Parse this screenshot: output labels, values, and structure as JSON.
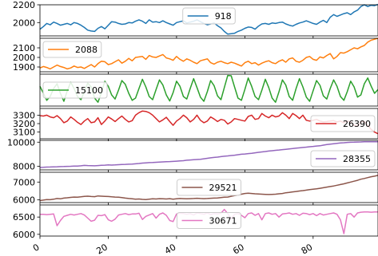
{
  "chart_data": [
    {
      "type": "line",
      "series": [
        {
          "name": "918",
          "color": "#1f77b4",
          "y": [
            1925,
            1955,
            1990,
            1975,
            2005,
            1990,
            1970,
            1980,
            1990,
            1975,
            2000,
            1990,
            1970,
            1945,
            1915,
            1905,
            1900,
            1935,
            1955,
            1930,
            1970,
            2010,
            2005,
            1990,
            1980,
            1985,
            2000,
            1995,
            2015,
            2030,
            2015,
            1990,
            2030,
            2005,
            2010,
            2000,
            2020,
            2000,
            1985,
            1970,
            2000,
            2010,
            2020,
            1995,
            2005,
            2015,
            2030,
            2010,
            1990,
            1975,
            1985,
            1995,
            1965,
            1940,
            1900,
            1870,
            1875,
            1880,
            1900,
            1915,
            1935,
            1950,
            1945,
            1925,
            1960,
            1985,
            1990,
            1980,
            1995,
            1990,
            2000,
            2005,
            1985,
            1970,
            1960,
            1980,
            1995,
            2005,
            2020,
            2005,
            1990,
            1980,
            2005,
            2025,
            2000,
            2060,
            2090,
            2070,
            2085,
            2100,
            2110,
            2090,
            2120,
            2140,
            2180,
            2200,
            2180,
            2195,
            2190,
            2205
          ]
        }
      ],
      "ylim": [
        1850,
        2200
      ],
      "yticks": [
        "2200",
        "2000"
      ],
      "ytick_values": [
        2200,
        2000
      ],
      "legend": "upper center"
    },
    {
      "type": "line",
      "series": [
        {
          "name": "2088",
          "color": "#ff7f0e",
          "y": [
            1890,
            1905,
            1895,
            1880,
            1900,
            1920,
            1905,
            1895,
            1880,
            1890,
            1910,
            1895,
            1900,
            1885,
            1905,
            1925,
            1900,
            1935,
            1960,
            1955,
            1925,
            1935,
            1955,
            1975,
            1940,
            1960,
            1990,
            1965,
            2000,
            2005,
            2010,
            1980,
            2020,
            2005,
            2000,
            2015,
            2030,
            1995,
            1985,
            1970,
            2010,
            1980,
            1960,
            1985,
            1970,
            1950,
            1935,
            1965,
            1975,
            1985,
            1945,
            1930,
            1950,
            1960,
            1945,
            1935,
            1950,
            1940,
            1925,
            1910,
            1945,
            1960,
            1935,
            1945,
            1920,
            1940,
            1955,
            1965,
            1945,
            1935,
            1960,
            1975,
            1950,
            1985,
            1995,
            1960,
            1950,
            1970,
            2000,
            2010,
            1980,
            1970,
            2005,
            1995,
            2020,
            2040,
            1985,
            2010,
            2050,
            2045,
            2060,
            2080,
            2100,
            2090,
            2110,
            2125,
            2160,
            2180,
            2190,
            2200
          ]
        }
      ],
      "ylim": [
        1850,
        2200
      ],
      "yticks": [
        "2100",
        "2000",
        "1900"
      ],
      "ytick_values": [
        2100,
        2000,
        1900
      ],
      "legend": "upper left"
    },
    {
      "type": "line",
      "series": [
        {
          "name": "15100",
          "color": "#2ca02c",
          "y": [
            0.62,
            0.4,
            0.18,
            0.3,
            0.55,
            0.7,
            0.4,
            0.15,
            0.48,
            0.75,
            0.55,
            0.3,
            0.2,
            0.45,
            0.72,
            0.6,
            0.25,
            0.12,
            0.42,
            0.78,
            0.62,
            0.35,
            0.22,
            0.5,
            0.8,
            0.68,
            0.4,
            0.18,
            0.25,
            0.55,
            0.84,
            0.6,
            0.3,
            0.2,
            0.52,
            0.82,
            0.66,
            0.35,
            0.16,
            0.42,
            0.78,
            0.62,
            0.3,
            0.22,
            0.55,
            0.86,
            0.58,
            0.28,
            0.15,
            0.45,
            0.8,
            0.64,
            0.32,
            0.2,
            0.58,
            0.96,
            0.95,
            0.6,
            0.25,
            0.18,
            0.52,
            0.88,
            0.62,
            0.3,
            0.2,
            0.5,
            0.84,
            0.58,
            0.25,
            0.12,
            0.45,
            0.82,
            0.66,
            0.3,
            0.18,
            0.55,
            0.86,
            0.6,
            0.28,
            0.15,
            0.48,
            0.8,
            0.65,
            0.32,
            0.22,
            0.55,
            0.82,
            0.62,
            0.3,
            0.18,
            0.45,
            0.78,
            0.6,
            0.28,
            0.35,
            0.7,
            0.88,
            0.62,
            0.4,
            0.52
          ]
        }
      ],
      "ylim": [
        0,
        1
      ],
      "yticks": [],
      "ytick_values": [],
      "legend": "center left"
    },
    {
      "type": "line",
      "series": [
        {
          "name": "26390",
          "color": "#d62728",
          "y": [
            3295,
            3290,
            3300,
            3280,
            3270,
            3295,
            3260,
            3210,
            3230,
            3280,
            3250,
            3215,
            3190,
            3230,
            3260,
            3210,
            3220,
            3270,
            3190,
            3230,
            3280,
            3255,
            3225,
            3260,
            3290,
            3250,
            3220,
            3235,
            3300,
            3330,
            3350,
            3345,
            3330,
            3300,
            3260,
            3220,
            3245,
            3275,
            3225,
            3180,
            3230,
            3260,
            3300,
            3270,
            3220,
            3250,
            3300,
            3240,
            3210,
            3230,
            3280,
            3255,
            3225,
            3250,
            3240,
            3195,
            3220,
            3260,
            3250,
            3240,
            3230,
            3285,
            3300,
            3250,
            3260,
            3320,
            3290,
            3270,
            3300,
            3280,
            3290,
            3330,
            3300,
            3260,
            3320,
            3295,
            3260,
            3300,
            3240,
            3230,
            3240,
            3250,
            3230,
            3220,
            3225,
            3230,
            3235,
            3220,
            3230,
            3210,
            3230,
            3220,
            3180,
            3170,
            3215,
            3225,
            3180,
            3130,
            3100,
            3080
          ]
        }
      ],
      "ylim": [
        3020,
        3380
      ],
      "yticks": [
        "3300",
        "3200",
        "3100"
      ],
      "ytick_values": [
        3300,
        3200,
        3100
      ],
      "legend": "center right"
    },
    {
      "type": "line",
      "series": [
        {
          "name": "28355",
          "color": "#9467bd",
          "y": [
            7900,
            7910,
            7930,
            7940,
            7950,
            7960,
            7970,
            7980,
            7990,
            8000,
            8010,
            8020,
            8040,
            8070,
            8060,
            8050,
            8040,
            8060,
            8080,
            8090,
            8110,
            8100,
            8110,
            8130,
            8150,
            8160,
            8170,
            8180,
            8200,
            8230,
            8260,
            8280,
            8300,
            8310,
            8330,
            8340,
            8360,
            8380,
            8390,
            8400,
            8420,
            8440,
            8460,
            8500,
            8520,
            8540,
            8560,
            8580,
            8620,
            8660,
            8700,
            8730,
            8760,
            8800,
            8830,
            8860,
            8890,
            8920,
            8960,
            9000,
            9020,
            9050,
            9080,
            9120,
            9160,
            9190,
            9220,
            9260,
            9290,
            9320,
            9350,
            9380,
            9410,
            9440,
            9470,
            9500,
            9530,
            9560,
            9590,
            9620,
            9650,
            9680,
            9700,
            9750,
            9800,
            9840,
            9870,
            9900,
            9930,
            9950,
            9980,
            9990,
            10000,
            10010,
            10020,
            10030,
            10040,
            10040,
            10040,
            10040
          ]
        }
      ],
      "ylim": [
        7700,
        10150
      ],
      "yticks": [
        "10000",
        "8000"
      ],
      "ytick_values": [
        10000,
        8000
      ],
      "legend": "lower right"
    },
    {
      "type": "line",
      "series": [
        {
          "name": "29521",
          "color": "#8c564b",
          "y": [
            5960,
            5990,
            6020,
            6010,
            6040,
            6080,
            6060,
            6100,
            6120,
            6140,
            6160,
            6150,
            6170,
            6200,
            6210,
            6190,
            6180,
            6220,
            6210,
            6200,
            6190,
            6170,
            6160,
            6150,
            6130,
            6100,
            6080,
            6060,
            6040,
            6050,
            6030,
            6020,
            6040,
            6060,
            6050,
            6070,
            6060,
            6050,
            6070,
            6040,
            6060,
            6080,
            6070,
            6060,
            6070,
            6080,
            6090,
            6080,
            6070,
            6080,
            6090,
            6100,
            6110,
            6130,
            6150,
            6160,
            6200,
            6240,
            6270,
            6320,
            6360,
            6380,
            6360,
            6340,
            6330,
            6320,
            6310,
            6300,
            6310,
            6320,
            6340,
            6360,
            6400,
            6420,
            6450,
            6470,
            6500,
            6520,
            6550,
            6580,
            6600,
            6620,
            6650,
            6680,
            6720,
            6750,
            6780,
            6820,
            6860,
            6900,
            6950,
            7000,
            7050,
            7100,
            7160,
            7200,
            7250,
            7300,
            7330,
            7380
          ]
        }
      ],
      "ylim": [
        5850,
        7550
      ],
      "yticks": [
        "7000",
        "6000"
      ],
      "ytick_values": [
        7000,
        6000
      ],
      "legend": "center"
    },
    {
      "type": "line",
      "series": [
        {
          "name": "30671",
          "color": "#e377c2",
          "y": [
            6580,
            6580,
            6570,
            6580,
            6590,
            6250,
            6400,
            6520,
            6550,
            6580,
            6560,
            6580,
            6600,
            6560,
            6470,
            6380,
            6410,
            6550,
            6540,
            6570,
            6420,
            6380,
            6440,
            6560,
            6580,
            6600,
            6570,
            6590,
            6590,
            6610,
            6430,
            6520,
            6560,
            6600,
            6470,
            6580,
            6620,
            6550,
            6400,
            6370,
            6590,
            6610,
            6600,
            6580,
            6600,
            6560,
            6620,
            6600,
            6580,
            6620,
            6570,
            6600,
            6590,
            6610,
            6720,
            6600,
            6450,
            6580,
            6600,
            6550,
            6480,
            6600,
            6620,
            6550,
            6600,
            6420,
            6600,
            6620,
            6580,
            6600,
            6500,
            6590,
            6600,
            6620,
            6580,
            6600,
            6550,
            6610,
            6600,
            6570,
            6600,
            6540,
            6600,
            6560,
            6580,
            6600,
            6620,
            6580,
            6420,
            6020,
            6580,
            6600,
            6500,
            6620,
            6640,
            6650,
            6650,
            6640,
            6650,
            6650
          ]
        }
      ],
      "ylim": [
        5950,
        6850
      ],
      "yticks": [
        "6500",
        "6000"
      ],
      "ytick_values": [
        6500,
        6000
      ],
      "legend": "center"
    }
  ],
  "x_axis": {
    "xlim": [
      0,
      99
    ],
    "ticks": [
      "0",
      "20",
      "40",
      "60",
      "80"
    ],
    "tick_values": [
      0,
      20,
      40,
      60,
      80
    ]
  },
  "colors": {
    "axes_edge": "#000000",
    "grid": "#e6e6e6",
    "legend_edge": "#cccccc"
  }
}
